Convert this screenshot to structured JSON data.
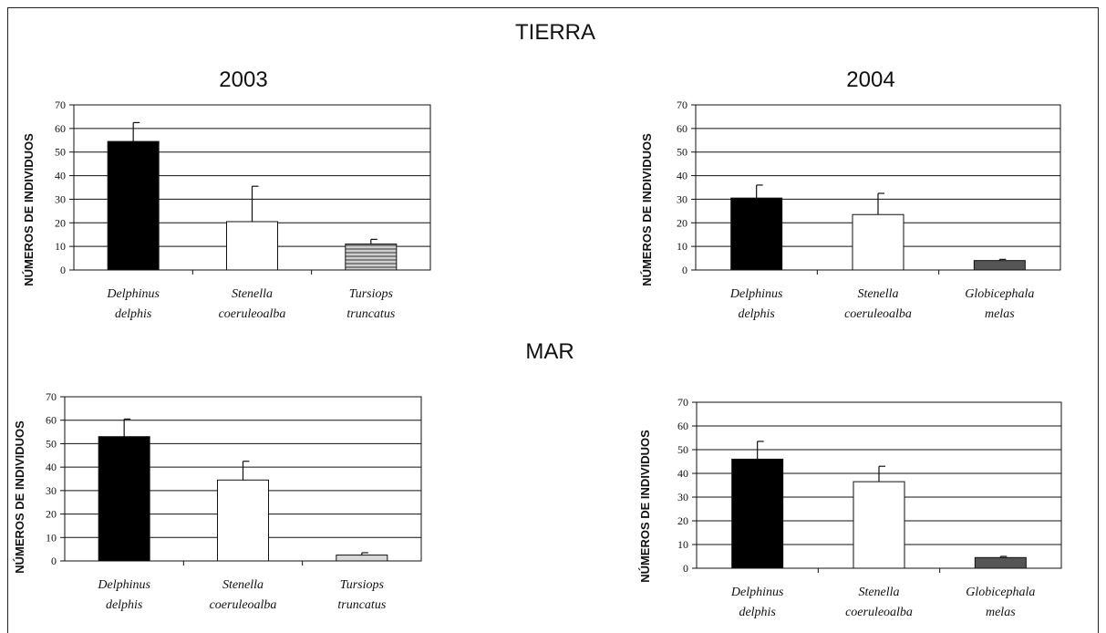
{
  "sections": {
    "top": "TIERRA",
    "bottom": "MAR"
  },
  "years": {
    "left": "2003",
    "right": "2004"
  },
  "colors": {
    "delphinus": "#000000",
    "stenella": "#ffffff",
    "tursiops": "#d9d9d9",
    "globicephala": "#555555",
    "axis": "#111111"
  },
  "chart_data": [
    {
      "type": "bar",
      "section": "TIERRA",
      "year": "2003",
      "ylabel": "NÚMEROS DE INDIVIDUOS",
      "ylim": [
        0,
        70
      ],
      "yticks": [
        0,
        10,
        20,
        30,
        40,
        50,
        60,
        70
      ],
      "grid": true,
      "categories": [
        [
          "Delphinus",
          "delphis"
        ],
        [
          "Stenella",
          "coeruleoalba"
        ],
        [
          "Tursiops",
          "truncatus"
        ]
      ],
      "values": [
        54.5,
        20.5,
        11
      ],
      "errors": [
        8,
        15,
        2
      ],
      "fills": [
        "#000000",
        "#ffffff",
        "striped"
      ]
    },
    {
      "type": "bar",
      "section": "TIERRA",
      "year": "2004",
      "ylabel": "NÚMEROS DE INDIVIDUOS",
      "ylim": [
        0,
        70
      ],
      "yticks": [
        0,
        10,
        20,
        30,
        40,
        50,
        60,
        70
      ],
      "grid": true,
      "categories": [
        [
          "Delphinus",
          "delphis"
        ],
        [
          "Stenella",
          "coeruleoalba"
        ],
        [
          "Globicephala",
          "melas"
        ]
      ],
      "values": [
        30.5,
        23.5,
        4
      ],
      "errors": [
        5.5,
        9,
        0.5
      ],
      "fills": [
        "#000000",
        "#ffffff",
        "#555555"
      ]
    },
    {
      "type": "bar",
      "section": "MAR",
      "year": "2003",
      "ylabel": "NÚMEROS DE INDIVIDUOS",
      "ylim": [
        0,
        70
      ],
      "yticks": [
        0,
        10,
        20,
        30,
        40,
        50,
        60,
        70
      ],
      "grid": true,
      "categories": [
        [
          "Delphinus",
          "delphis"
        ],
        [
          "Stenella",
          "coeruleoalba"
        ],
        [
          "Tursiops",
          "truncatus"
        ]
      ],
      "values": [
        53,
        34.5,
        2.5
      ],
      "errors": [
        7.5,
        8,
        1
      ],
      "fills": [
        "#000000",
        "#ffffff",
        "#d9d9d9"
      ]
    },
    {
      "type": "bar",
      "section": "MAR",
      "year": "2004",
      "ylabel": "NÚMEROS DE INDIVIDUOS",
      "ylim": [
        0,
        70
      ],
      "yticks": [
        0,
        10,
        20,
        30,
        40,
        50,
        60,
        70
      ],
      "grid": true,
      "categories": [
        [
          "Delphinus",
          "delphis"
        ],
        [
          "Stenella",
          "coeruleoalba"
        ],
        [
          "Globicephala",
          "melas"
        ]
      ],
      "values": [
        46,
        36.5,
        4.5
      ],
      "errors": [
        7.5,
        6.5,
        0.5
      ],
      "fills": [
        "#000000",
        "#ffffff",
        "#555555"
      ]
    }
  ]
}
